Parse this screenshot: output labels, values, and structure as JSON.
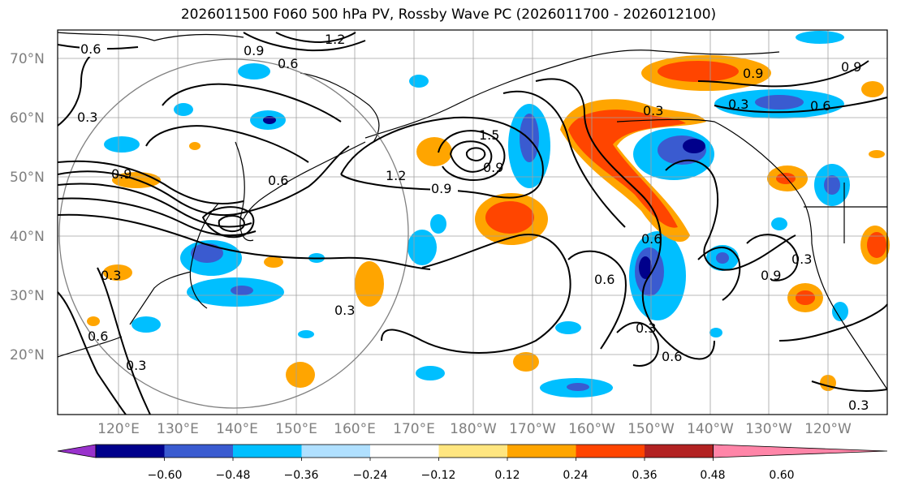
{
  "title": "2026011500 F060 500 hPa PV, Rossby Wave PC (2026011700 - 2026012100)",
  "lat_labels": [
    "70°N",
    "60°N",
    "50°N",
    "40°N",
    "30°N",
    "20°N"
  ],
  "lon_labels": [
    "120°E",
    "130°E",
    "140°E",
    "150°E",
    "160°E",
    "170°E",
    "180°W",
    "170°W",
    "160°W",
    "150°W",
    "140°W",
    "130°W",
    "120°W"
  ],
  "contour_labels": [
    "0.6",
    "0.9",
    "0.6",
    "0.3",
    "0.3",
    "0.9",
    "0.6",
    "1.5",
    "1.2",
    "0.9",
    "1.2",
    "0.9",
    "0.3",
    "0.6",
    "0.6",
    "0.3",
    "0.3",
    "0.6",
    "0.9",
    "0.3",
    "0.6",
    "0.9",
    "0.3",
    "0.9",
    "0.3",
    "0.6",
    "0.3"
  ],
  "colorbar": {
    "colors": [
      "#9932cc",
      "#00008b",
      "#3a5bd0",
      "#00bfff",
      "#b0e0ff",
      "#ffffff",
      "#ffe680",
      "#ffa500",
      "#ff4500",
      "#b22222",
      "#ff85a8"
    ],
    "tick_labels": [
      "−0.60",
      "−0.48",
      "−0.36",
      "−0.24",
      "−0.12",
      "0.12",
      "0.24",
      "0.36",
      "0.48",
      "0.60"
    ]
  }
}
